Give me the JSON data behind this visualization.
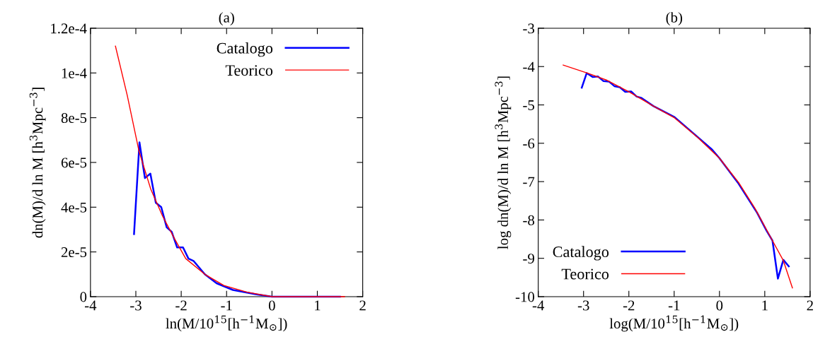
{
  "chart_data": [
    {
      "type": "line",
      "title": "(a)",
      "xlabel": "ln(M/10$^{15}$[h$^{−1}$M$_{⊙}$])",
      "ylabel": "dn(M)/d ln M [h$^{3}$Mpc$^{−3}$]",
      "xlim": [
        -4,
        2
      ],
      "xticks": [
        -4,
        -3,
        -2,
        -1,
        0,
        1,
        2
      ],
      "ylim": [
        0,
        0.00012
      ],
      "yticks": [
        0,
        {
          "value": 2e-05,
          "label": "2e-5"
        },
        {
          "value": 4e-05,
          "label": "4e-5"
        },
        {
          "value": 6e-05,
          "label": "6e-5"
        },
        {
          "value": 8e-05,
          "label": "8e-5"
        },
        {
          "value": 0.0001,
          "label": "1e-4"
        },
        {
          "value": 0.00012,
          "label": "1.2e-4"
        }
      ],
      "legend": "top right",
      "grid": false,
      "series": [
        {
          "name": "Catalogo",
          "color": "#0000ff",
          "x": [
            -3.04,
            -2.92,
            -2.8,
            -2.68,
            -2.56,
            -2.44,
            -2.32,
            -2.21,
            -2.09,
            -1.96,
            -1.84,
            -1.73,
            -1.48,
            -1.22,
            -0.86,
            -0.34,
            0,
            1,
            1.5
          ],
          "values": [
            2.8e-05,
            6.9e-05,
            5.3e-05,
            5.5e-05,
            4.2e-05,
            4e-05,
            3.1e-05,
            2.9e-05,
            2.2e-05,
            2.2e-05,
            1.7e-05,
            1.6e-05,
            1e-05,
            6e-06,
            3e-06,
            1e-06,
            0,
            0,
            0
          ]
        },
        {
          "name": "Teorico",
          "color": "#ff0000",
          "x": [
            -3.45,
            -3.19,
            -2.93,
            -2.67,
            -2.41,
            -2.15,
            -1.9,
            -1.48,
            -1.06,
            -0.55,
            0,
            1.6
          ],
          "values": [
            0.000112,
            9e-05,
            6.5e-05,
            4.8e-05,
            3.6e-05,
            2.6e-05,
            1.7e-05,
            1e-05,
            5e-06,
            2e-06,
            0,
            0
          ]
        }
      ]
    },
    {
      "type": "line",
      "title": "(b)",
      "xlabel": "log(M/10$^{15}$[h$^{−1}$M$_{⊙}$])",
      "ylabel": "log dn(M)/d ln M [h$^{3}$Mpc$^{−3}$]",
      "xlim": [
        -4,
        2
      ],
      "xticks": [
        -4,
        -3,
        -2,
        -1,
        0,
        1,
        2
      ],
      "ylim": [
        -10,
        -3
      ],
      "yticks": [
        -10,
        -9,
        -8,
        -7,
        -6,
        -5,
        -4,
        -3
      ],
      "legend": "bottom left",
      "grid": false,
      "series": [
        {
          "name": "Catalogo",
          "color": "#0000ff",
          "x": [
            -3.04,
            -2.93,
            -2.8,
            -2.68,
            -2.56,
            -2.44,
            -2.32,
            -2.2,
            -2.08,
            -1.95,
            -1.83,
            -1.72,
            -1.46,
            -0.99,
            -0.47,
            -0.16,
            0,
            0.42,
            0.83,
            1.04,
            1.17,
            1.29,
            1.41,
            1.53
          ],
          "values": [
            -4.55,
            -4.17,
            -4.27,
            -4.26,
            -4.38,
            -4.39,
            -4.51,
            -4.54,
            -4.66,
            -4.65,
            -4.78,
            -4.82,
            -5.03,
            -5.32,
            -5.85,
            -6.17,
            -6.39,
            -7.05,
            -7.81,
            -8.28,
            -8.54,
            -9.53,
            -9.04,
            -9.21
          ]
        },
        {
          "name": "Teorico",
          "color": "#ff0000",
          "x": [
            -3.45,
            -2.92,
            -2.5,
            -1.98,
            -1.46,
            -0.99,
            -0.47,
            0,
            0.42,
            0.78,
            1.17,
            1.41,
            1.61
          ],
          "values": [
            -3.96,
            -4.17,
            -4.35,
            -4.67,
            -5.03,
            -5.34,
            -5.86,
            -6.39,
            -7.02,
            -7.69,
            -8.54,
            -9.06,
            -9.77
          ]
        }
      ]
    }
  ]
}
